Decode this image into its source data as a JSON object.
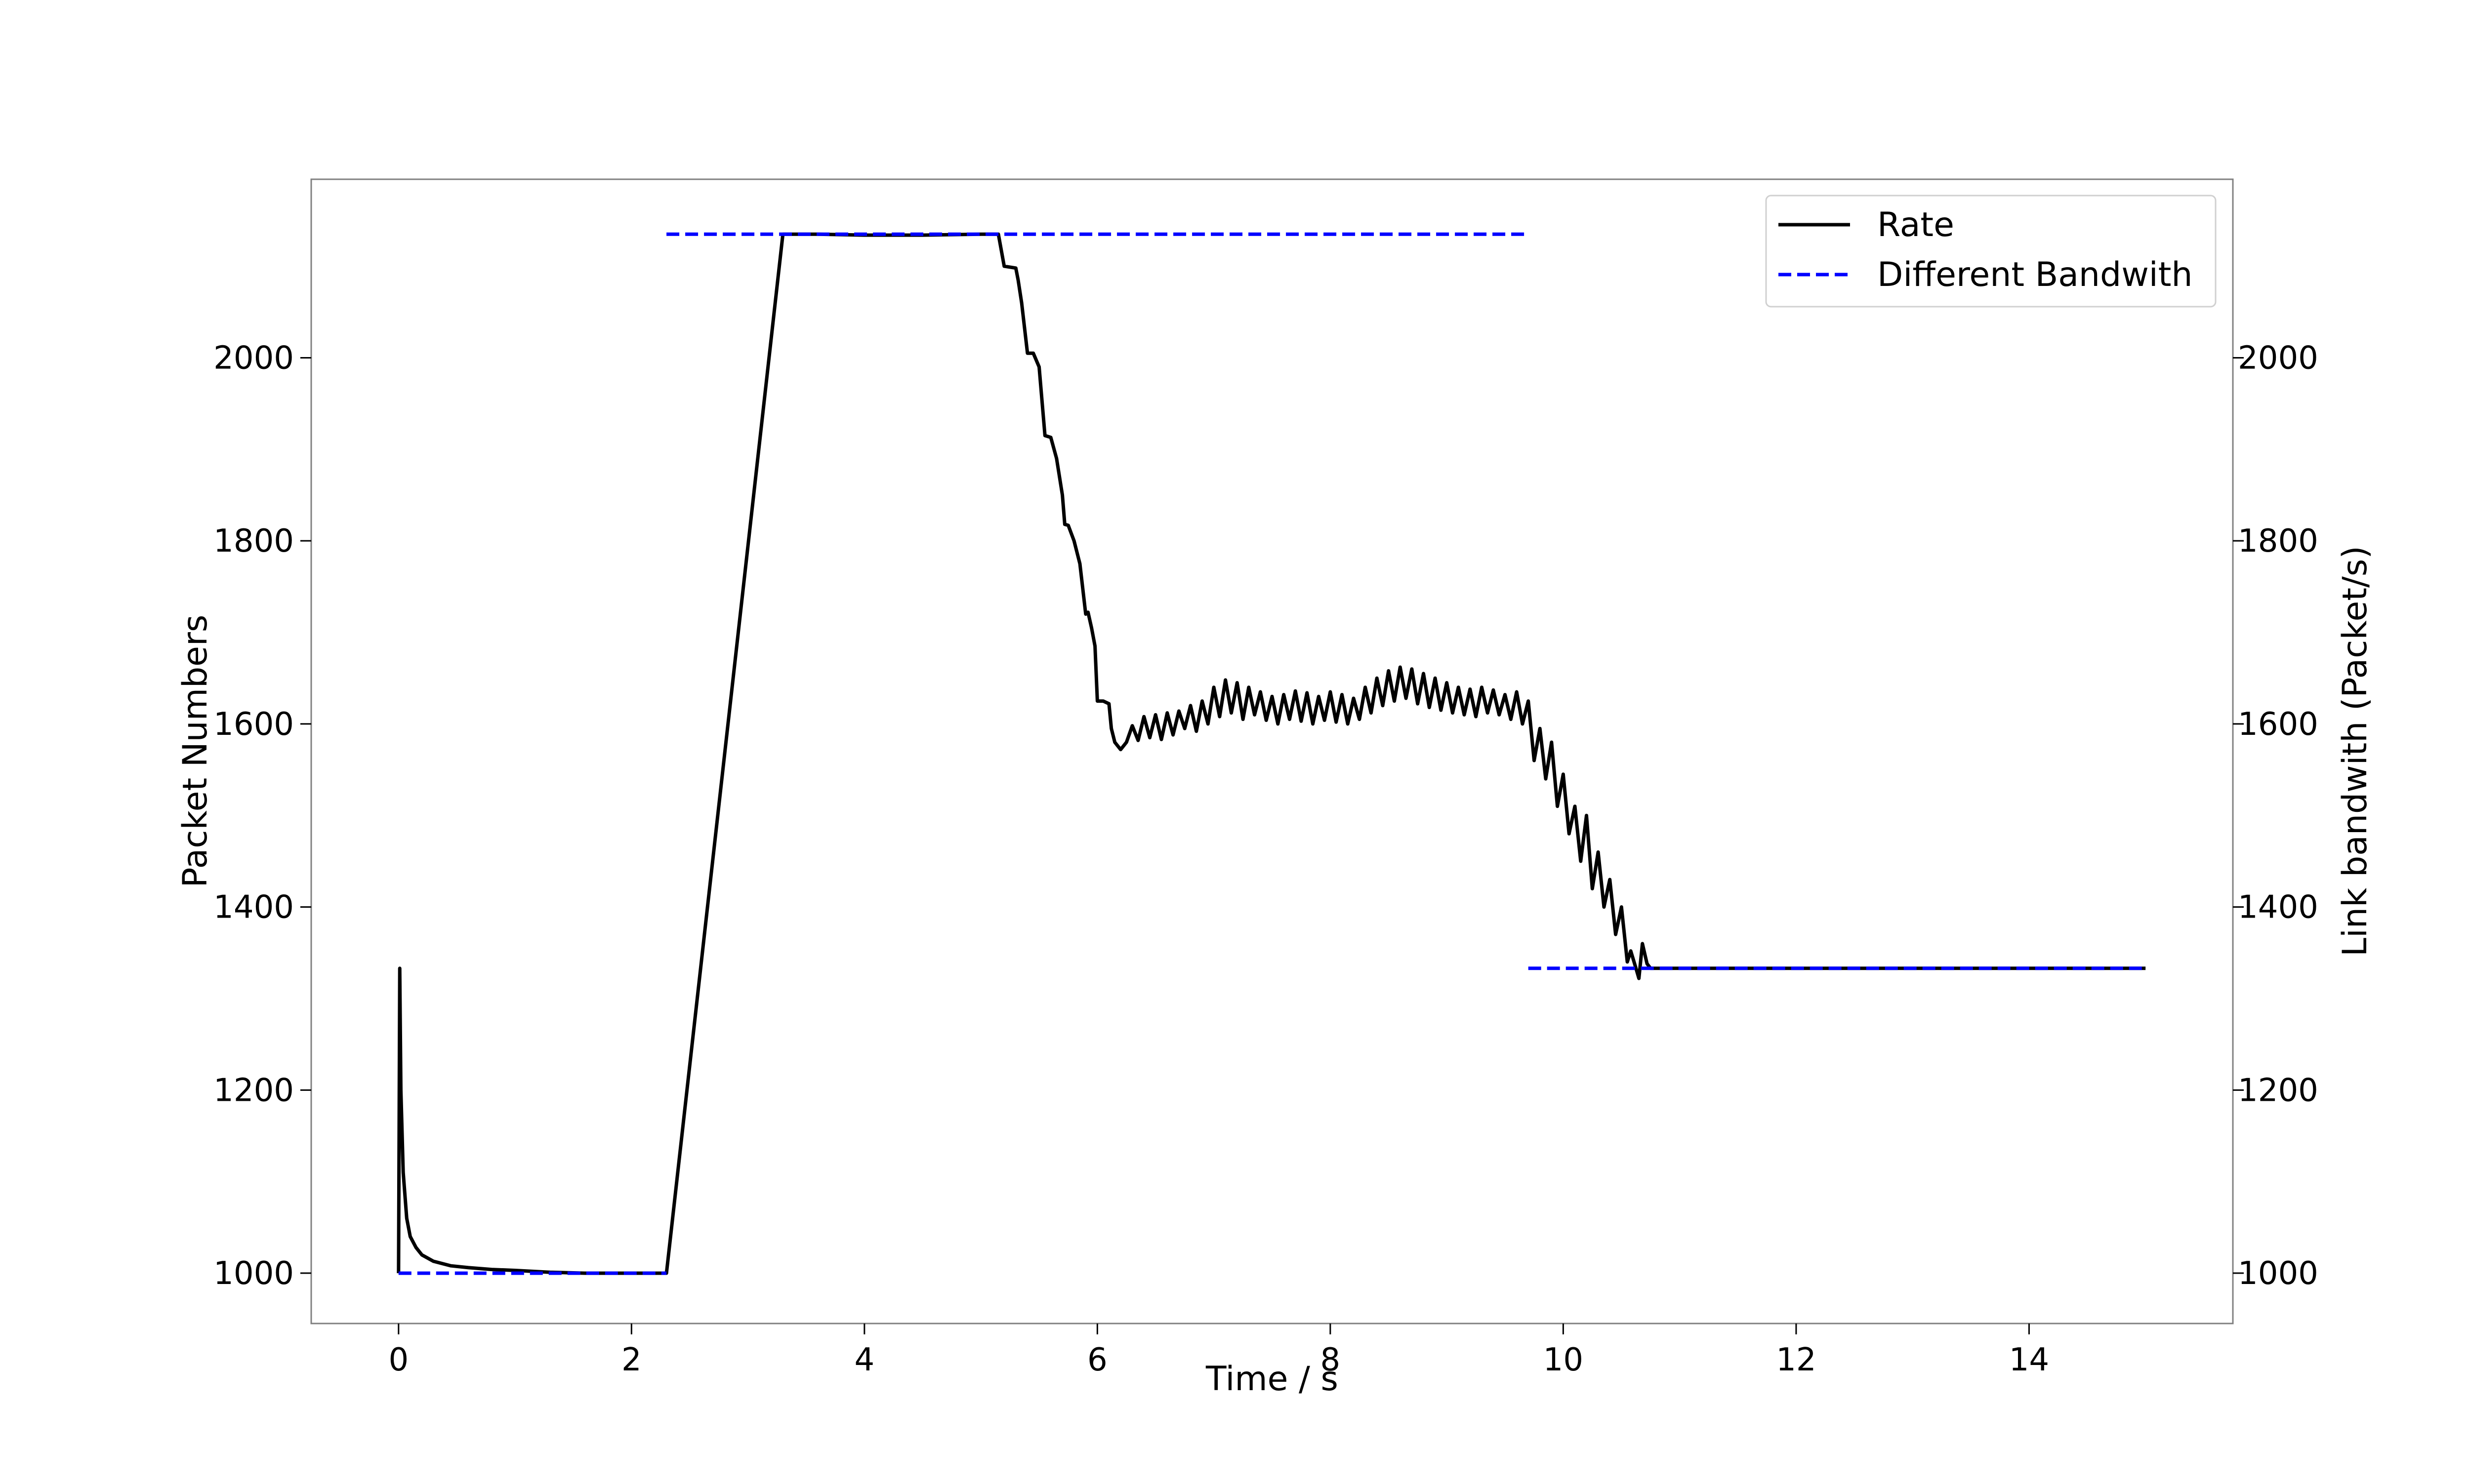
{
  "chart_data": {
    "type": "line",
    "xlabel": "Time / s",
    "ylabel": "Packet Numbers",
    "ylabel_right": "Link bandwith (Packet/s)",
    "xlim": [
      -0.75,
      15.75
    ],
    "ylim": [
      945,
      2195
    ],
    "ylim_right": [
      945,
      2195
    ],
    "x_ticks": [
      0,
      2,
      4,
      6,
      8,
      10,
      12,
      14
    ],
    "y_ticks": [
      1000,
      1200,
      1400,
      1600,
      1800,
      2000
    ],
    "y_ticks_right": [
      1000,
      1200,
      1400,
      1600,
      1800,
      2000
    ],
    "grid": false,
    "legend_position": "top-right",
    "series": [
      {
        "name": "Rate",
        "color": "#000000",
        "style": "solid",
        "x": [
          0.0,
          0.01,
          0.02,
          0.04,
          0.07,
          0.1,
          0.15,
          0.2,
          0.3,
          0.45,
          0.6,
          0.8,
          1.0,
          1.3,
          1.6,
          2.0,
          2.3,
          3.3,
          3.6,
          4.0,
          4.5,
          5.0,
          5.15,
          5.2,
          5.3,
          5.32,
          5.35,
          5.4,
          5.45,
          5.5,
          5.52,
          5.55,
          5.6,
          5.65,
          5.7,
          5.72,
          5.75,
          5.8,
          5.85,
          5.9,
          5.92,
          5.95,
          5.98,
          6.0,
          6.05,
          6.1,
          6.12,
          6.15,
          6.2,
          6.25,
          6.3,
          6.35,
          6.4,
          6.45,
          6.5,
          6.55,
          6.6,
          6.65,
          6.7,
          6.75,
          6.8,
          6.85,
          6.9,
          6.95,
          7.0,
          7.05,
          7.1,
          7.15,
          7.2,
          7.25,
          7.3,
          7.35,
          7.4,
          7.45,
          7.5,
          7.55,
          7.6,
          7.65,
          7.7,
          7.75,
          7.8,
          7.85,
          7.9,
          7.95,
          8.0,
          8.05,
          8.1,
          8.15,
          8.2,
          8.25,
          8.3,
          8.35,
          8.4,
          8.45,
          8.5,
          8.55,
          8.6,
          8.65,
          8.7,
          8.75,
          8.8,
          8.85,
          8.9,
          8.95,
          9.0,
          9.05,
          9.1,
          9.15,
          9.2,
          9.25,
          9.3,
          9.35,
          9.4,
          9.45,
          9.5,
          9.55,
          9.6,
          9.65,
          9.7,
          9.75,
          9.8,
          9.85,
          9.9,
          9.95,
          10.0,
          10.05,
          10.1,
          10.15,
          10.2,
          10.25,
          10.3,
          10.35,
          10.4,
          10.45,
          10.5,
          10.55,
          10.58,
          10.62,
          10.65,
          10.68,
          10.72,
          10.75,
          10.8,
          11.0,
          12.0,
          13.0,
          14.0,
          15.0
        ],
        "y": [
          1000,
          1333,
          1200,
          1110,
          1060,
          1040,
          1028,
          1020,
          1013,
          1008,
          1006,
          1004,
          1003,
          1001,
          1000,
          1000,
          1000,
          2135,
          2135,
          2134,
          2134,
          2135,
          2135,
          2100,
          2098,
          2085,
          2060,
          2005,
          2005,
          1990,
          1960,
          1915,
          1913,
          1890,
          1850,
          1818,
          1817,
          1800,
          1775,
          1720,
          1722,
          1705,
          1685,
          1625,
          1625,
          1622,
          1595,
          1580,
          1572,
          1580,
          1598,
          1582,
          1608,
          1585,
          1610,
          1583,
          1612,
          1588,
          1614,
          1595,
          1620,
          1592,
          1625,
          1600,
          1640,
          1608,
          1648,
          1612,
          1645,
          1605,
          1640,
          1610,
          1635,
          1604,
          1630,
          1600,
          1632,
          1605,
          1636,
          1603,
          1634,
          1600,
          1630,
          1604,
          1635,
          1602,
          1632,
          1600,
          1628,
          1605,
          1640,
          1612,
          1650,
          1620,
          1658,
          1625,
          1662,
          1628,
          1660,
          1622,
          1655,
          1618,
          1650,
          1615,
          1645,
          1612,
          1640,
          1610,
          1638,
          1608,
          1640,
          1612,
          1637,
          1610,
          1632,
          1605,
          1635,
          1600,
          1625,
          1560,
          1595,
          1540,
          1580,
          1510,
          1545,
          1480,
          1510,
          1450,
          1500,
          1420,
          1460,
          1400,
          1430,
          1370,
          1400,
          1340,
          1352,
          1335,
          1322,
          1360,
          1338,
          1333,
          1333,
          1333,
          1333,
          1333,
          1333,
          1333
        ]
      },
      {
        "name": "Different Bandwith",
        "color": "#0000ff",
        "style": "dashed",
        "segments": [
          {
            "x": [
              0.0,
              2.3
            ],
            "y": [
              1000,
              1000
            ]
          },
          {
            "x": [
              2.3,
              9.7
            ],
            "y": [
              2135,
              2135
            ]
          },
          {
            "x": [
              9.7,
              15.0
            ],
            "y": [
              1333,
              1333
            ]
          }
        ]
      }
    ]
  }
}
